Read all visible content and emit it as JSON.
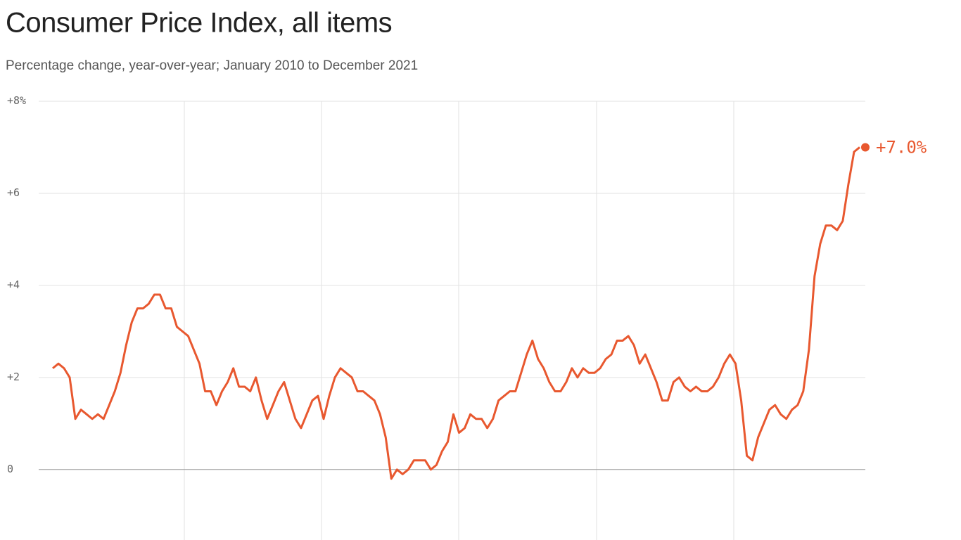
{
  "chart_data": {
    "type": "line",
    "title": "Consumer Price Index, all items",
    "subtitle": "Percentage change, year-over-year; January 2010 to December 2021",
    "color": "#e8582f",
    "annotation": "+7.0%",
    "ylim": [
      -1.5,
      8
    ],
    "yticks": [
      0,
      {
        "value": 2,
        "label": "+2"
      },
      {
        "value": 4,
        "label": "+4"
      },
      {
        "value": 6,
        "label": "+6"
      },
      {
        "value": 8,
        "label": "+8%"
      }
    ],
    "grid": true,
    "values": [
      2.2,
      2.3,
      2.2,
      2.0,
      1.1,
      1.3,
      1.2,
      1.1,
      1.2,
      1.1,
      1.4,
      1.7,
      2.1,
      2.7,
      3.2,
      3.5,
      3.5,
      3.6,
      3.8,
      3.8,
      3.5,
      3.5,
      3.1,
      3.0,
      2.9,
      2.6,
      2.3,
      1.7,
      1.7,
      1.4,
      1.7,
      1.9,
      2.2,
      1.8,
      1.8,
      1.7,
      2.0,
      1.5,
      1.1,
      1.4,
      1.7,
      1.9,
      1.5,
      1.1,
      0.9,
      1.2,
      1.5,
      1.6,
      1.1,
      1.6,
      2.0,
      2.2,
      2.1,
      2.0,
      1.7,
      1.7,
      1.6,
      1.5,
      1.2,
      0.7,
      -0.2,
      0.0,
      -0.1,
      0.0,
      0.2,
      0.2,
      0.2,
      0.0,
      0.1,
      0.4,
      0.6,
      1.2,
      0.8,
      0.9,
      1.2,
      1.1,
      1.1,
      0.9,
      1.1,
      1.5,
      1.6,
      1.7,
      1.7,
      2.1,
      2.5,
      2.8,
      2.4,
      2.2,
      1.9,
      1.7,
      1.7,
      1.9,
      2.2,
      2.0,
      2.2,
      2.1,
      2.1,
      2.2,
      2.4,
      2.5,
      2.8,
      2.8,
      2.9,
      2.7,
      2.3,
      2.5,
      2.2,
      1.9,
      1.5,
      1.5,
      1.9,
      2.0,
      1.8,
      1.7,
      1.8,
      1.7,
      1.7,
      1.8,
      2.0,
      2.3,
      2.5,
      2.3,
      1.5,
      0.3,
      0.2,
      0.7,
      1.0,
      1.3,
      1.4,
      1.2,
      1.1,
      1.3,
      1.4,
      1.7,
      2.6,
      4.2,
      4.9,
      5.3,
      5.3,
      5.2,
      5.4,
      6.2,
      6.9,
      7.0
    ]
  }
}
